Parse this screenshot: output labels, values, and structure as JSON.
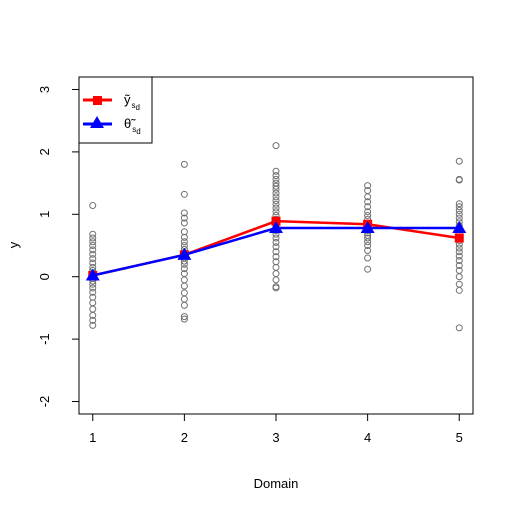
{
  "chart_data": {
    "type": "scatter",
    "title": "",
    "xlabel": "Domain",
    "ylabel": "y",
    "x_ticks": [
      "1",
      "2",
      "3",
      "4",
      "5"
    ],
    "y_ticks": [
      "-2",
      "-1",
      "0",
      "1",
      "2",
      "3"
    ],
    "xlim": [
      0.85,
      5.15
    ],
    "ylim": [
      -2.2,
      3.2
    ],
    "grid": false,
    "legend_position": "top-left",
    "observations": [
      {
        "domain": 1,
        "values": [
          1.14,
          0.68,
          0.62,
          0.56,
          0.5,
          0.43,
          0.36,
          0.29,
          0.22,
          0.15,
          0.1,
          0.06,
          0.03,
          0.0,
          -0.03,
          -0.07,
          -0.12,
          -0.18,
          -0.25,
          -0.33,
          -0.42,
          -0.52,
          -0.62,
          -0.7,
          -0.78
        ]
      },
      {
        "domain": 2,
        "values": [
          1.8,
          1.32,
          1.02,
          0.94,
          0.86,
          0.72,
          0.63,
          0.56,
          0.5,
          0.44,
          0.39,
          0.35,
          0.3,
          0.25,
          0.2,
          0.13,
          0.05,
          -0.05,
          -0.15,
          -0.26,
          -0.36,
          -0.46,
          -0.64,
          -0.68
        ]
      },
      {
        "domain": 3,
        "values": [
          2.1,
          1.69,
          1.62,
          1.56,
          1.5,
          1.45,
          1.4,
          1.34,
          1.28,
          1.22,
          1.16,
          1.1,
          1.04,
          0.98,
          0.92,
          0.86,
          0.8,
          0.74,
          0.68,
          0.62,
          0.55,
          0.48,
          0.4,
          0.32,
          0.24,
          0.15,
          0.05,
          -0.05,
          -0.16,
          -0.18
        ]
      },
      {
        "domain": 4,
        "values": [
          1.46,
          1.38,
          1.28,
          1.2,
          1.12,
          1.04,
          0.98,
          0.92,
          0.86,
          0.82,
          0.78,
          0.74,
          0.7,
          0.66,
          0.62,
          0.56,
          0.5,
          0.42,
          0.3,
          0.12
        ]
      },
      {
        "domain": 5,
        "values": [
          1.85,
          1.56,
          1.55,
          1.17,
          1.12,
          1.06,
          1.0,
          0.94,
          0.88,
          0.82,
          0.76,
          0.7,
          0.64,
          0.58,
          0.52,
          0.46,
          0.4,
          0.33,
          0.26,
          0.18,
          0.1,
          0.0,
          -0.12,
          -0.22,
          -0.82
        ]
      }
    ],
    "series": [
      {
        "name": "ỹ s d",
        "name_main": "ỹ",
        "name_sub": "s",
        "name_subsub": "d",
        "color": "#ff0000",
        "marker": "square",
        "x": [
          1,
          2,
          3,
          4,
          5
        ],
        "y": [
          0.02,
          0.35,
          0.89,
          0.84,
          0.62
        ]
      },
      {
        "name": "θ̃ s d",
        "name_main": "θ̃",
        "name_sub": "s",
        "name_subsub": "d",
        "color": "#0000ff",
        "marker": "triangle",
        "x": [
          1,
          2,
          3,
          4,
          5
        ],
        "y": [
          0.02,
          0.35,
          0.78,
          0.78,
          0.78
        ]
      }
    ]
  }
}
